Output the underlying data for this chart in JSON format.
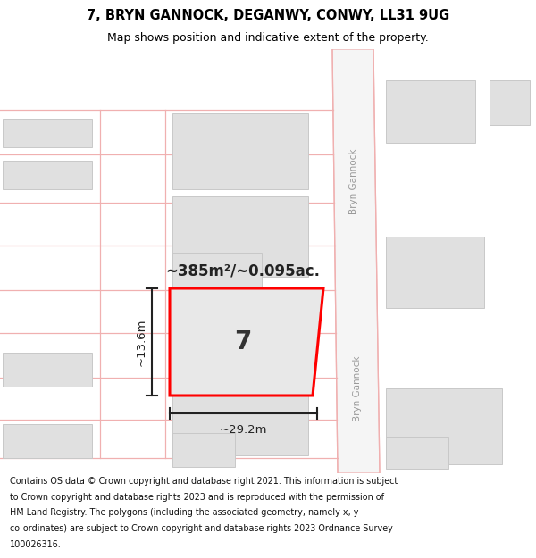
{
  "title": "7, BRYN GANNOCK, DEGANWY, CONWY, LL31 9UG",
  "subtitle": "Map shows position and indicative extent of the property.",
  "footer_lines": [
    "Contains OS data © Crown copyright and database right 2021. This information is subject",
    "to Crown copyright and database rights 2023 and is reproduced with the permission of",
    "HM Land Registry. The polygons (including the associated geometry, namely x, y",
    "co-ordinates) are subject to Crown copyright and database rights 2023 Ordnance Survey",
    "100026316."
  ],
  "area_text": "~385m²/~0.095ac.",
  "label_7": "7",
  "dim_width": "~29.2m",
  "dim_height": "~13.6m",
  "street_name": "Bryn Gannock",
  "map_bg": "#ffffff",
  "building_color": "#e0e0e0",
  "building_border": "#c8c8c8",
  "plot_fill": "#e8e8e8",
  "plot_border": "#ff0000",
  "road_line_color": "#f0b0b0",
  "road_fill": "#f5f5f5",
  "title_fontsize": 10.5,
  "subtitle_fontsize": 9,
  "footer_fontsize": 6.9
}
